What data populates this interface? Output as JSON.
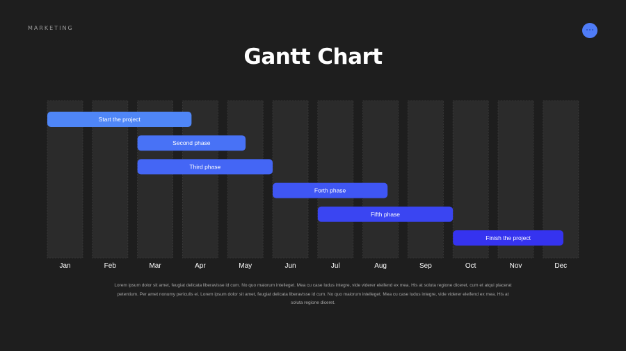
{
  "header": {
    "label": "MARKETING"
  },
  "title": "Gantt Chart",
  "chart_data": {
    "type": "gantt",
    "months": [
      "Jan",
      "Feb",
      "Mar",
      "Apr",
      "May",
      "Jun",
      "Jul",
      "Aug",
      "Sep",
      "Oct",
      "Nov",
      "Dec"
    ],
    "tasks": [
      {
        "name": "Start the project",
        "start": 0.0,
        "end": 3.2,
        "color": "#4f86f7"
      },
      {
        "name": "Second phase",
        "start": 2.0,
        "end": 4.4,
        "color": "#4872f6"
      },
      {
        "name": "Third phase",
        "start": 2.0,
        "end": 5.0,
        "color": "#4466f5"
      },
      {
        "name": "Forth phase",
        "start": 5.0,
        "end": 7.55,
        "color": "#3f56f4"
      },
      {
        "name": "Fifth phase",
        "start": 6.0,
        "end": 9.0,
        "color": "#3a45f2"
      },
      {
        "name": "Finish the project",
        "start": 9.0,
        "end": 11.45,
        "color": "#3533ef"
      }
    ]
  },
  "body_text": "Lorem ipsum dolor sit amet, feugiat delicata liberavisse id cum. No quo maiorum intelleget. Mea cu case ludus integre, vide viderer eleifend ex mea. His at soluta regione diceret, cum et atqui placerat petentium. Per amet nonumy periculis ei. Lorem ipsum dolor sit amet, feugiat delicata liberavisse id cum. No quo maiorum intelleget. Mea cu case ludus integre, vide viderer eleifend ex mea. His at soluta regione diceret."
}
